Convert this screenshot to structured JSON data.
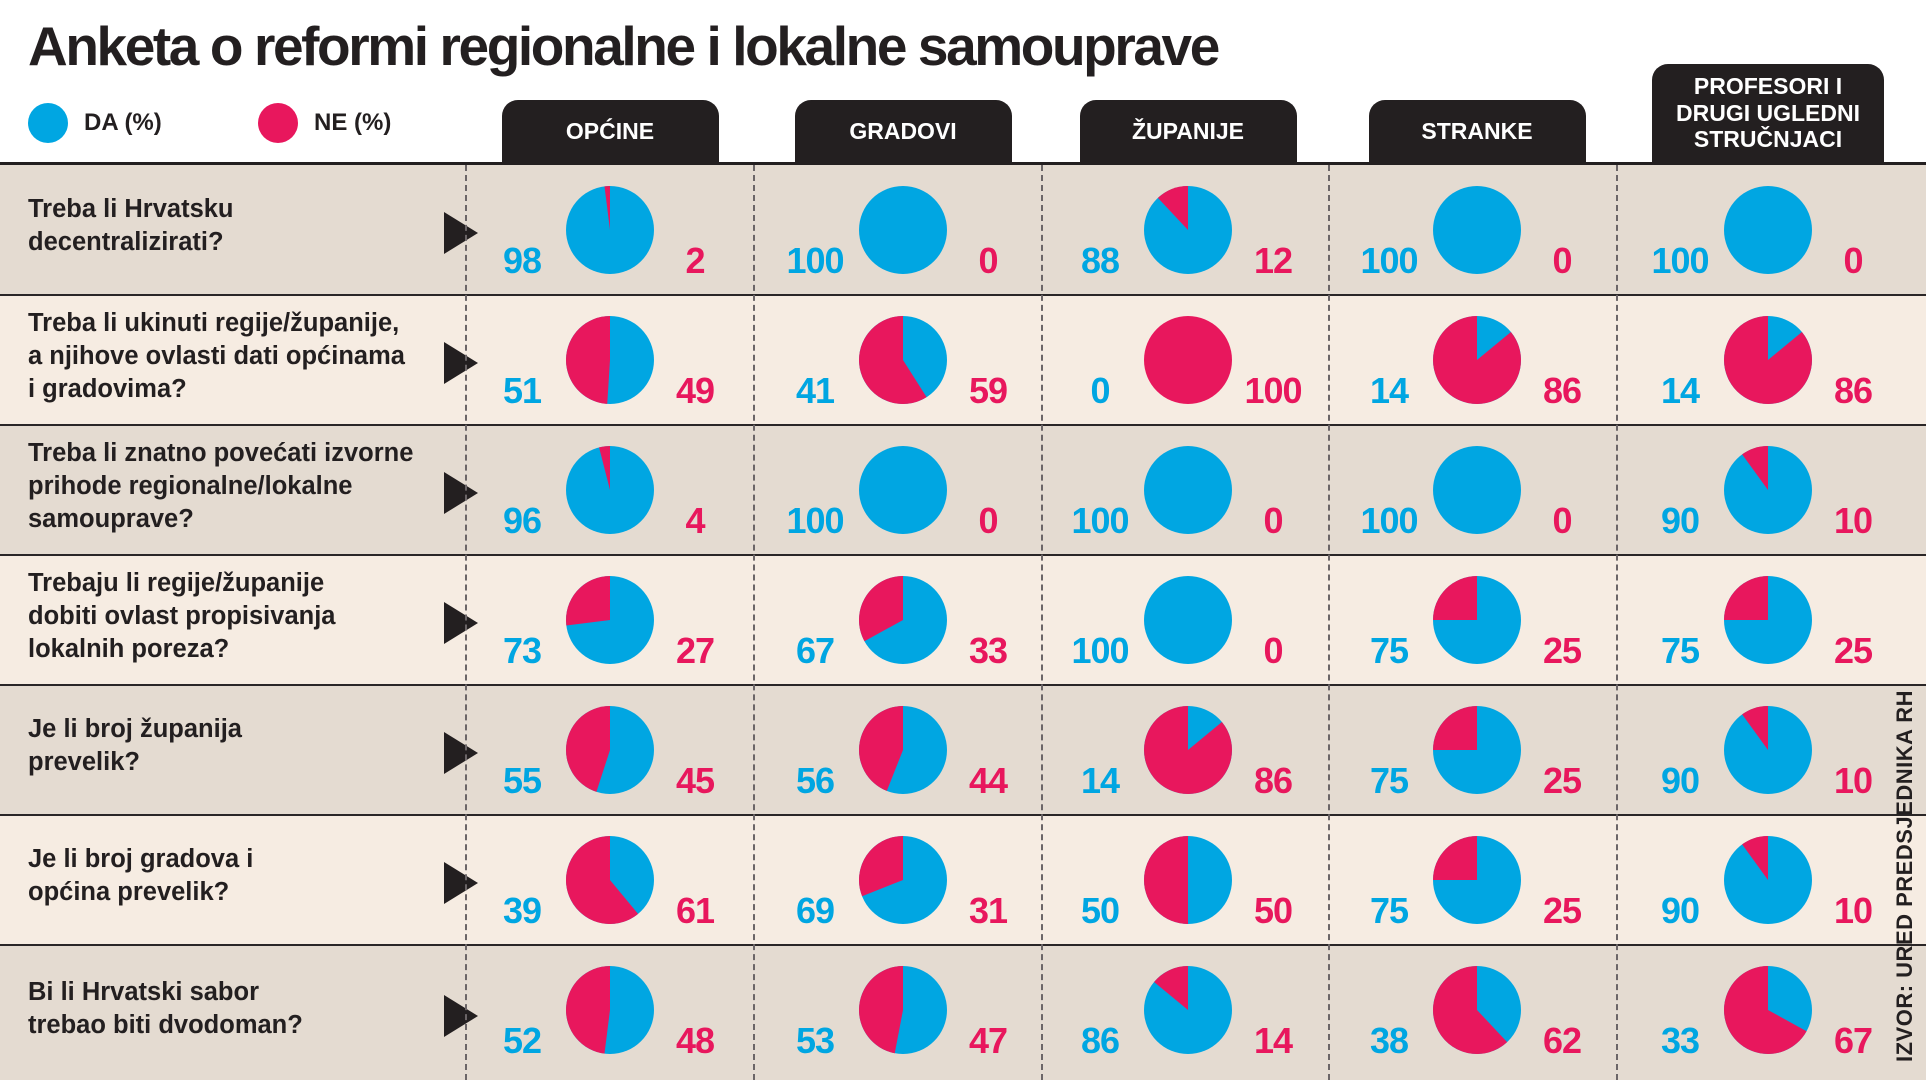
{
  "title": "Anketa o reformi regionalne i lokalne samouprave",
  "legend": {
    "yes": "DA (%)",
    "no": "NE (%)"
  },
  "colors": {
    "yes": "#00a6e2",
    "no": "#e8175d",
    "row_dark": "#e4dbd1",
    "row_light": "#f6ece2",
    "ink": "#231f20"
  },
  "source": "IZVOR: URED PREDSJEDNIKA RH",
  "icons": {
    "row_marker": "triangle-right-icon"
  },
  "chart_data": {
    "type": "pie",
    "title": "Anketa o reformi regionalne i lokalne samouprave",
    "legend": [
      "DA (%)",
      "NE (%)"
    ],
    "groups": [
      "OPĆINE",
      "GRADOVI",
      "ŽUPANIJE",
      "STRANKE",
      "PROFESORI I\nDRUGI UGLEDNI\nSTRUČNJACI"
    ],
    "questions": [
      {
        "text": "Treba li Hrvatsku\ndecentralizirati?",
        "yes": [
          98,
          100,
          88,
          100,
          100
        ],
        "no": [
          2,
          0,
          12,
          0,
          0
        ]
      },
      {
        "text": "Treba li ukinuti regije/županije,\na njihove ovlasti dati općinama\ni gradovima?",
        "yes": [
          51,
          41,
          0,
          14,
          14
        ],
        "no": [
          49,
          59,
          100,
          86,
          86
        ]
      },
      {
        "text": "Treba li znatno povećati izvorne\nprihode regionalne/lokalne\nsamouprave?",
        "yes": [
          96,
          100,
          100,
          100,
          90
        ],
        "no": [
          4,
          0,
          0,
          0,
          10
        ]
      },
      {
        "text": "Trebaju li regije/županije\ndobiti ovlast propisivanja\nlokalnih poreza?",
        "yes": [
          73,
          67,
          100,
          75,
          75
        ],
        "no": [
          27,
          33,
          0,
          25,
          25
        ]
      },
      {
        "text": "Je li broj županija\nprevelik?",
        "yes": [
          55,
          56,
          14,
          75,
          90
        ],
        "no": [
          45,
          44,
          86,
          25,
          10
        ]
      },
      {
        "text": "Je li broj gradova i\nopćina prevelik?",
        "yes": [
          39,
          69,
          50,
          75,
          90
        ],
        "no": [
          61,
          31,
          50,
          25,
          10
        ]
      },
      {
        "text": "Bi li Hrvatski sabor\ntrebao biti dvodoman?",
        "yes": [
          52,
          53,
          86,
          38,
          33
        ],
        "no": [
          48,
          47,
          14,
          62,
          67
        ]
      }
    ]
  }
}
